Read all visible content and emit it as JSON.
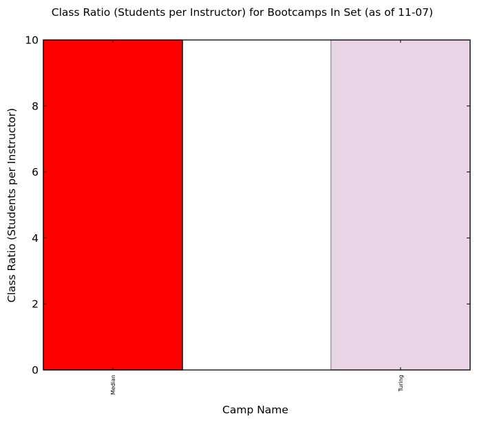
{
  "chart_data": {
    "type": "bar",
    "title": "Class Ratio (Students per Instructor) for Bootcamps In Set (as of 11-07)",
    "xlabel": "Camp Name",
    "ylabel": "Class Ratio (Students per Instructor)",
    "categories": [
      "Median",
      "Turing"
    ],
    "values": [
      10,
      10
    ],
    "colors": [
      "#ff0000",
      "#e8d4e4"
    ],
    "edge_colors": [
      "#000000",
      "#888888"
    ],
    "ylim": [
      0,
      10
    ],
    "yticks": [
      "0",
      "2",
      "4",
      "6",
      "8",
      "10"
    ],
    "grid": false
  }
}
